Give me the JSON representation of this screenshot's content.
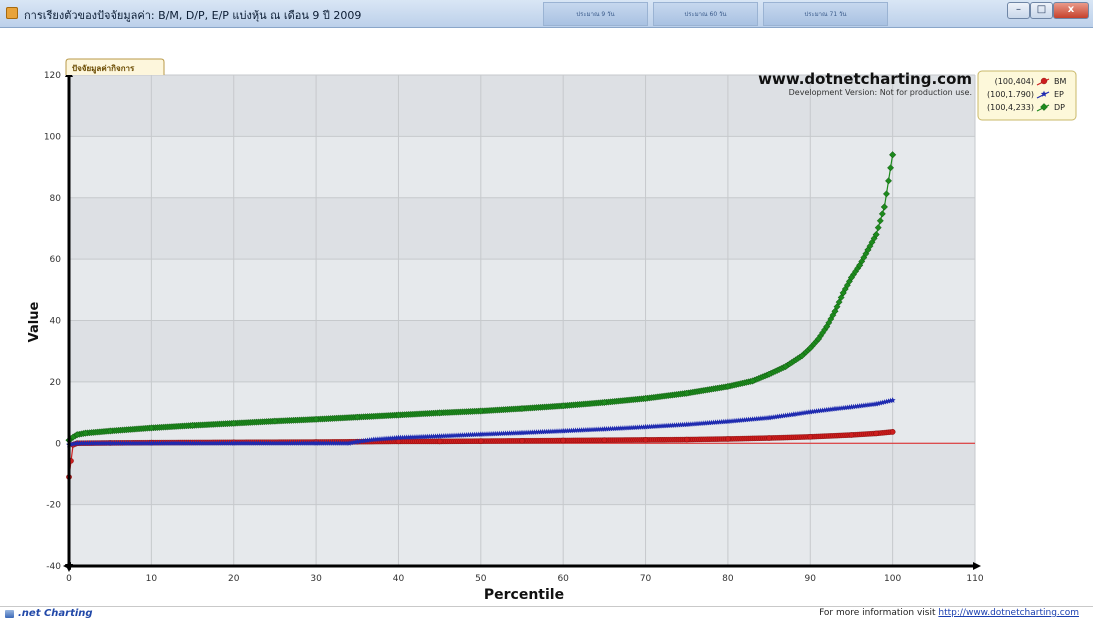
{
  "window": {
    "title": "การเรียงตัวของปัจจัยมูลค่า: B/M, D/P, E/P แบ่งหุ้น ณ เดือน 9 ปี 2009",
    "tabs": [
      "ประมาณ 9 วัน",
      "ประมาณ 60 วัน",
      "ประมาณ 71 วัน"
    ],
    "minimize_label": "–",
    "maximize_label": "□",
    "close_label": "x"
  },
  "chart_tab_label": "ปัจจัยมูลค่ากิจการ",
  "watermark": {
    "title": "www.dotnetcharting.com",
    "subtitle": "Development Version: Not for production use."
  },
  "footer": {
    "logo_text": ".net Charting",
    "info_text": "For more information visit",
    "info_link": "http://www.dotnetcharting.com"
  },
  "chart_data": {
    "type": "scatter",
    "xlabel": "Percentile",
    "ylabel": "Value",
    "xlim": [
      0,
      110
    ],
    "ylim": [
      -40,
      120
    ],
    "xticks": [
      0,
      10,
      20,
      30,
      40,
      50,
      60,
      70,
      80,
      90,
      100,
      110
    ],
    "yticks": [
      -40,
      -20,
      0,
      20,
      40,
      60,
      80,
      100,
      120
    ],
    "grid": true,
    "legend_position": "top-right",
    "reference_line": {
      "y": 0,
      "color": "#e02020"
    },
    "series": [
      {
        "name": "BM",
        "legend_label": "(100,404)",
        "color": "#cc1e1e",
        "marker": "circle",
        "points": [
          [
            0,
            -11
          ],
          [
            0.5,
            -0.5
          ],
          [
            1,
            0
          ],
          [
            5,
            0.1
          ],
          [
            10,
            0.2
          ],
          [
            20,
            0.3
          ],
          [
            30,
            0.4
          ],
          [
            35,
            0.5
          ],
          [
            40,
            0.6
          ],
          [
            45,
            0.6
          ],
          [
            50,
            0.7
          ],
          [
            55,
            0.8
          ],
          [
            60,
            0.9
          ],
          [
            65,
            1.0
          ],
          [
            70,
            1.1
          ],
          [
            75,
            1.2
          ],
          [
            80,
            1.4
          ],
          [
            85,
            1.7
          ],
          [
            90,
            2.1
          ],
          [
            95,
            2.7
          ],
          [
            98,
            3.2
          ],
          [
            100,
            3.7
          ]
        ]
      },
      {
        "name": "EP",
        "legend_label": "(100,1.790)",
        "color": "#1f2bb0",
        "marker": "star",
        "points": [
          [
            0,
            -0.5
          ],
          [
            1,
            0
          ],
          [
            5,
            0
          ],
          [
            10,
            0
          ],
          [
            20,
            0
          ],
          [
            30,
            0
          ],
          [
            34,
            0
          ],
          [
            35,
            0.5
          ],
          [
            37,
            1.2
          ],
          [
            40,
            1.8
          ],
          [
            45,
            2.3
          ],
          [
            50,
            2.9
          ],
          [
            55,
            3.4
          ],
          [
            60,
            4.0
          ],
          [
            65,
            4.6
          ],
          [
            70,
            5.3
          ],
          [
            75,
            6.1
          ],
          [
            80,
            7.1
          ],
          [
            85,
            8.3
          ],
          [
            88,
            9.4
          ],
          [
            90,
            10.2
          ],
          [
            93,
            11.2
          ],
          [
            95,
            11.8
          ],
          [
            98,
            12.8
          ],
          [
            100,
            14
          ]
        ]
      },
      {
        "name": "DP",
        "legend_label": "(100,4,233)",
        "color": "#1d8a1d",
        "marker": "diamond",
        "points": [
          [
            0,
            1
          ],
          [
            0.5,
            2
          ],
          [
            1,
            2.8
          ],
          [
            2,
            3.3
          ],
          [
            5,
            4
          ],
          [
            10,
            5
          ],
          [
            15,
            5.8
          ],
          [
            20,
            6.5
          ],
          [
            25,
            7.2
          ],
          [
            30,
            7.8
          ],
          [
            35,
            8.5
          ],
          [
            40,
            9.2
          ],
          [
            45,
            9.9
          ],
          [
            50,
            10.5
          ],
          [
            55,
            11.3
          ],
          [
            60,
            12.2
          ],
          [
            65,
            13.3
          ],
          [
            70,
            14.6
          ],
          [
            75,
            16.3
          ],
          [
            80,
            18.5
          ],
          [
            83,
            20.3
          ],
          [
            85,
            22.5
          ],
          [
            87,
            25
          ],
          [
            89,
            28.5
          ],
          [
            90,
            31
          ],
          [
            91,
            34
          ],
          [
            92,
            38
          ],
          [
            93,
            43
          ],
          [
            94,
            49
          ],
          [
            95,
            54
          ],
          [
            96,
            58
          ],
          [
            97,
            63
          ],
          [
            98,
            68
          ],
          [
            99,
            77
          ],
          [
            100,
            94
          ]
        ]
      }
    ]
  }
}
